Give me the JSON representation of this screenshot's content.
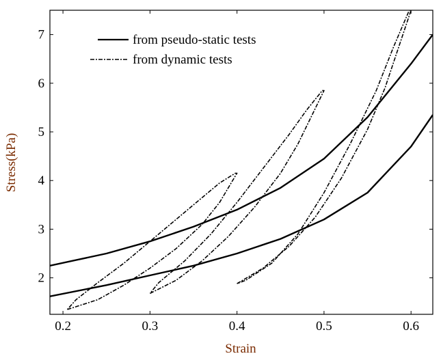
{
  "chart_data": {
    "type": "line",
    "xlabel": "Strain",
    "ylabel": "Stress(kPa)",
    "xlim": [
      0.185,
      0.625
    ],
    "ylim": [
      1.25,
      7.5
    ],
    "xticks": [
      "0.2",
      "0.3",
      "0.4",
      "0.5",
      "0.6"
    ],
    "xtick_values": [
      0.2,
      0.3,
      0.4,
      0.5,
      0.6
    ],
    "yticks": [
      "2",
      "3",
      "4",
      "5",
      "6",
      "7"
    ],
    "ytick_values": [
      2,
      3,
      4,
      5,
      6,
      7
    ],
    "grid": false,
    "legend_position": "top-left",
    "series": [
      {
        "name": "from pseudo-static tests",
        "style": "solid",
        "segments": [
          {
            "x": [
              0.185,
              0.25,
              0.3,
              0.35,
              0.4,
              0.45,
              0.5,
              0.55,
              0.6,
              0.625
            ],
            "y": [
              2.25,
              2.5,
              2.75,
              3.05,
              3.4,
              3.85,
              4.45,
              5.3,
              6.4,
              7.0
            ]
          },
          {
            "x": [
              0.185,
              0.25,
              0.3,
              0.35,
              0.4,
              0.45,
              0.5,
              0.55,
              0.6,
              0.625
            ],
            "y": [
              1.62,
              1.85,
              2.05,
              2.25,
              2.5,
              2.8,
              3.2,
              3.75,
              4.7,
              5.35
            ]
          }
        ]
      },
      {
        "name": "from dynamic tests",
        "style": "dashdot",
        "segments": [
          {
            "x": [
              0.205,
              0.24,
              0.27,
              0.3,
              0.33,
              0.36,
              0.38,
              0.4,
              0.398,
              0.38,
              0.36,
              0.33,
              0.3,
              0.27,
              0.24,
              0.215,
              0.205
            ],
            "y": [
              1.35,
              1.55,
              1.85,
              2.2,
              2.6,
              3.1,
              3.55,
              4.15,
              4.15,
              3.95,
              3.65,
              3.2,
              2.75,
              2.3,
              1.9,
              1.55,
              1.35
            ]
          },
          {
            "x": [
              0.3,
              0.33,
              0.36,
              0.39,
              0.42,
              0.45,
              0.47,
              0.5,
              0.498,
              0.48,
              0.46,
              0.43,
              0.4,
              0.37,
              0.34,
              0.31,
              0.3
            ],
            "y": [
              1.68,
              1.95,
              2.35,
              2.85,
              3.45,
              4.15,
              4.75,
              5.85,
              5.85,
              5.45,
              4.95,
              4.25,
              3.55,
              2.9,
              2.35,
              1.9,
              1.68
            ]
          },
          {
            "x": [
              0.4,
              0.43,
              0.46,
              0.49,
              0.52,
              0.55,
              0.57,
              0.6,
              0.598,
              0.58,
              0.56,
              0.53,
              0.5,
              0.47,
              0.44,
              0.41,
              0.4
            ],
            "y": [
              1.88,
              2.2,
              2.65,
              3.25,
              4.05,
              5.05,
              5.9,
              7.5,
              7.5,
              6.75,
              5.85,
              4.75,
              3.75,
              2.9,
              2.3,
              1.95,
              1.88
            ]
          }
        ]
      }
    ]
  }
}
